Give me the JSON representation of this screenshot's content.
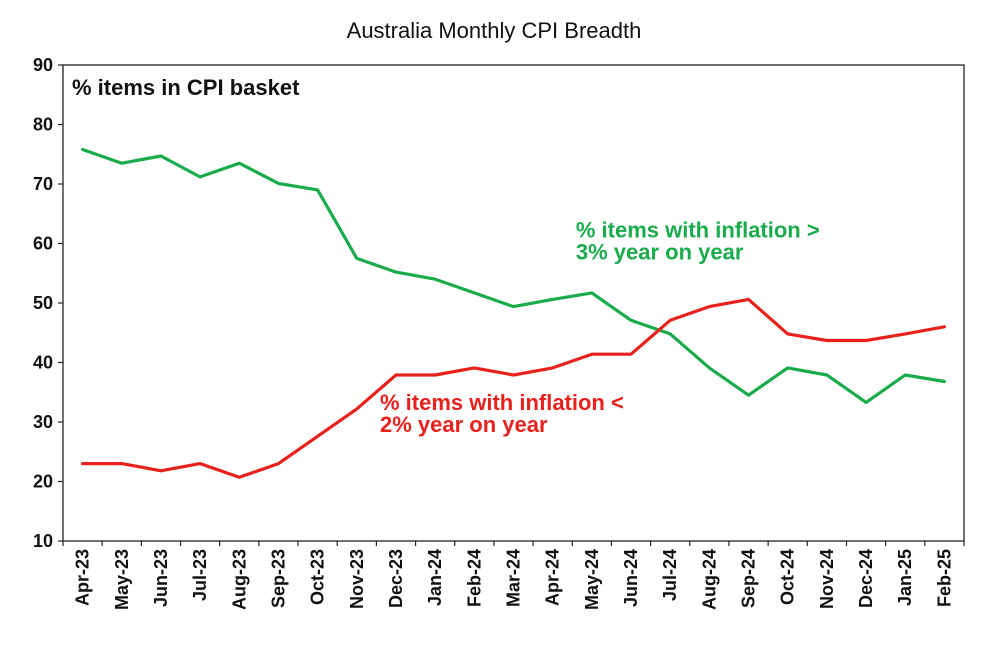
{
  "chart_data": {
    "type": "line",
    "title": "Australia Monthly CPI Breadth",
    "ylabel": "% items in CPI basket",
    "xlabel": "",
    "ylim": [
      10,
      90
    ],
    "yticks": [
      10,
      20,
      30,
      40,
      50,
      60,
      70,
      80,
      90
    ],
    "grid": false,
    "legend": "none",
    "categories": [
      "Apr-23",
      "May-23",
      "Jun-23",
      "Jul-23",
      "Aug-23",
      "Sep-23",
      "Oct-23",
      "Nov-23",
      "Dec-23",
      "Jan-24",
      "Feb-24",
      "Mar-24",
      "Apr-24",
      "May-24",
      "Jun-24",
      "Jul-24",
      "Aug-24",
      "Sep-24",
      "Oct-24",
      "Nov-24",
      "Dec-24",
      "Jan-25",
      "Feb-25"
    ],
    "series": [
      {
        "color": "#1aab4b",
        "values": [
          75.8,
          73.5,
          74.7,
          71.2,
          73.5,
          70.1,
          69.0,
          57.5,
          55.2,
          54.0,
          51.7,
          49.4,
          50.6,
          51.7,
          47.1,
          44.8,
          39.1,
          34.5,
          39.1,
          37.9,
          33.3,
          37.9,
          36.8
        ]
      },
      {
        "color": "#e8211c",
        "values": [
          23.0,
          23.0,
          21.8,
          23.0,
          20.7,
          23.0,
          27.6,
          32.2,
          37.9,
          37.9,
          39.1,
          37.9,
          39.1,
          41.4,
          41.4,
          47.1,
          49.4,
          50.6,
          44.8,
          43.7,
          43.7,
          44.8,
          46.0
        ]
      }
    ],
    "annotations": [
      {
        "lines": [
          "% items with inflation >",
          "3% year on year"
        ],
        "color": "#1aab4b",
        "anchor": {
          "x": "May-24",
          "y": 61
        }
      },
      {
        "lines": [
          "% items with inflation <",
          "2% year on year"
        ],
        "color": "#e8211c",
        "anchor": {
          "x": "Dec-23",
          "y": 32
        }
      }
    ]
  }
}
